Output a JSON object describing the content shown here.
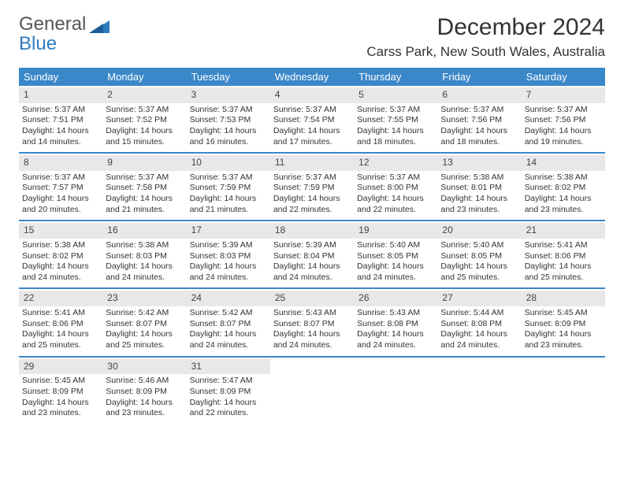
{
  "logo": {
    "line1": "General",
    "line2": "Blue"
  },
  "title": "December 2024",
  "location": "Carss Park, New South Wales, Australia",
  "colors": {
    "header_bg": "#3a87c9",
    "header_text": "#ffffff",
    "daynum_bg": "#e8e8e8",
    "row_border": "#3a87c9",
    "logo_blue": "#2f7bbf"
  },
  "weekdays": [
    "Sunday",
    "Monday",
    "Tuesday",
    "Wednesday",
    "Thursday",
    "Friday",
    "Saturday"
  ],
  "weeks": [
    [
      {
        "n": "1",
        "sr": "Sunrise: 5:37 AM",
        "ss": "Sunset: 7:51 PM",
        "d1": "Daylight: 14 hours",
        "d2": "and 14 minutes."
      },
      {
        "n": "2",
        "sr": "Sunrise: 5:37 AM",
        "ss": "Sunset: 7:52 PM",
        "d1": "Daylight: 14 hours",
        "d2": "and 15 minutes."
      },
      {
        "n": "3",
        "sr": "Sunrise: 5:37 AM",
        "ss": "Sunset: 7:53 PM",
        "d1": "Daylight: 14 hours",
        "d2": "and 16 minutes."
      },
      {
        "n": "4",
        "sr": "Sunrise: 5:37 AM",
        "ss": "Sunset: 7:54 PM",
        "d1": "Daylight: 14 hours",
        "d2": "and 17 minutes."
      },
      {
        "n": "5",
        "sr": "Sunrise: 5:37 AM",
        "ss": "Sunset: 7:55 PM",
        "d1": "Daylight: 14 hours",
        "d2": "and 18 minutes."
      },
      {
        "n": "6",
        "sr": "Sunrise: 5:37 AM",
        "ss": "Sunset: 7:56 PM",
        "d1": "Daylight: 14 hours",
        "d2": "and 18 minutes."
      },
      {
        "n": "7",
        "sr": "Sunrise: 5:37 AM",
        "ss": "Sunset: 7:56 PM",
        "d1": "Daylight: 14 hours",
        "d2": "and 19 minutes."
      }
    ],
    [
      {
        "n": "8",
        "sr": "Sunrise: 5:37 AM",
        "ss": "Sunset: 7:57 PM",
        "d1": "Daylight: 14 hours",
        "d2": "and 20 minutes."
      },
      {
        "n": "9",
        "sr": "Sunrise: 5:37 AM",
        "ss": "Sunset: 7:58 PM",
        "d1": "Daylight: 14 hours",
        "d2": "and 21 minutes."
      },
      {
        "n": "10",
        "sr": "Sunrise: 5:37 AM",
        "ss": "Sunset: 7:59 PM",
        "d1": "Daylight: 14 hours",
        "d2": "and 21 minutes."
      },
      {
        "n": "11",
        "sr": "Sunrise: 5:37 AM",
        "ss": "Sunset: 7:59 PM",
        "d1": "Daylight: 14 hours",
        "d2": "and 22 minutes."
      },
      {
        "n": "12",
        "sr": "Sunrise: 5:37 AM",
        "ss": "Sunset: 8:00 PM",
        "d1": "Daylight: 14 hours",
        "d2": "and 22 minutes."
      },
      {
        "n": "13",
        "sr": "Sunrise: 5:38 AM",
        "ss": "Sunset: 8:01 PM",
        "d1": "Daylight: 14 hours",
        "d2": "and 23 minutes."
      },
      {
        "n": "14",
        "sr": "Sunrise: 5:38 AM",
        "ss": "Sunset: 8:02 PM",
        "d1": "Daylight: 14 hours",
        "d2": "and 23 minutes."
      }
    ],
    [
      {
        "n": "15",
        "sr": "Sunrise: 5:38 AM",
        "ss": "Sunset: 8:02 PM",
        "d1": "Daylight: 14 hours",
        "d2": "and 24 minutes."
      },
      {
        "n": "16",
        "sr": "Sunrise: 5:38 AM",
        "ss": "Sunset: 8:03 PM",
        "d1": "Daylight: 14 hours",
        "d2": "and 24 minutes."
      },
      {
        "n": "17",
        "sr": "Sunrise: 5:39 AM",
        "ss": "Sunset: 8:03 PM",
        "d1": "Daylight: 14 hours",
        "d2": "and 24 minutes."
      },
      {
        "n": "18",
        "sr": "Sunrise: 5:39 AM",
        "ss": "Sunset: 8:04 PM",
        "d1": "Daylight: 14 hours",
        "d2": "and 24 minutes."
      },
      {
        "n": "19",
        "sr": "Sunrise: 5:40 AM",
        "ss": "Sunset: 8:05 PM",
        "d1": "Daylight: 14 hours",
        "d2": "and 24 minutes."
      },
      {
        "n": "20",
        "sr": "Sunrise: 5:40 AM",
        "ss": "Sunset: 8:05 PM",
        "d1": "Daylight: 14 hours",
        "d2": "and 25 minutes."
      },
      {
        "n": "21",
        "sr": "Sunrise: 5:41 AM",
        "ss": "Sunset: 8:06 PM",
        "d1": "Daylight: 14 hours",
        "d2": "and 25 minutes."
      }
    ],
    [
      {
        "n": "22",
        "sr": "Sunrise: 5:41 AM",
        "ss": "Sunset: 8:06 PM",
        "d1": "Daylight: 14 hours",
        "d2": "and 25 minutes."
      },
      {
        "n": "23",
        "sr": "Sunrise: 5:42 AM",
        "ss": "Sunset: 8:07 PM",
        "d1": "Daylight: 14 hours",
        "d2": "and 25 minutes."
      },
      {
        "n": "24",
        "sr": "Sunrise: 5:42 AM",
        "ss": "Sunset: 8:07 PM",
        "d1": "Daylight: 14 hours",
        "d2": "and 24 minutes."
      },
      {
        "n": "25",
        "sr": "Sunrise: 5:43 AM",
        "ss": "Sunset: 8:07 PM",
        "d1": "Daylight: 14 hours",
        "d2": "and 24 minutes."
      },
      {
        "n": "26",
        "sr": "Sunrise: 5:43 AM",
        "ss": "Sunset: 8:08 PM",
        "d1": "Daylight: 14 hours",
        "d2": "and 24 minutes."
      },
      {
        "n": "27",
        "sr": "Sunrise: 5:44 AM",
        "ss": "Sunset: 8:08 PM",
        "d1": "Daylight: 14 hours",
        "d2": "and 24 minutes."
      },
      {
        "n": "28",
        "sr": "Sunrise: 5:45 AM",
        "ss": "Sunset: 8:09 PM",
        "d1": "Daylight: 14 hours",
        "d2": "and 23 minutes."
      }
    ],
    [
      {
        "n": "29",
        "sr": "Sunrise: 5:45 AM",
        "ss": "Sunset: 8:09 PM",
        "d1": "Daylight: 14 hours",
        "d2": "and 23 minutes."
      },
      {
        "n": "30",
        "sr": "Sunrise: 5:46 AM",
        "ss": "Sunset: 8:09 PM",
        "d1": "Daylight: 14 hours",
        "d2": "and 23 minutes."
      },
      {
        "n": "31",
        "sr": "Sunrise: 5:47 AM",
        "ss": "Sunset: 8:09 PM",
        "d1": "Daylight: 14 hours",
        "d2": "and 22 minutes."
      },
      null,
      null,
      null,
      null
    ]
  ]
}
